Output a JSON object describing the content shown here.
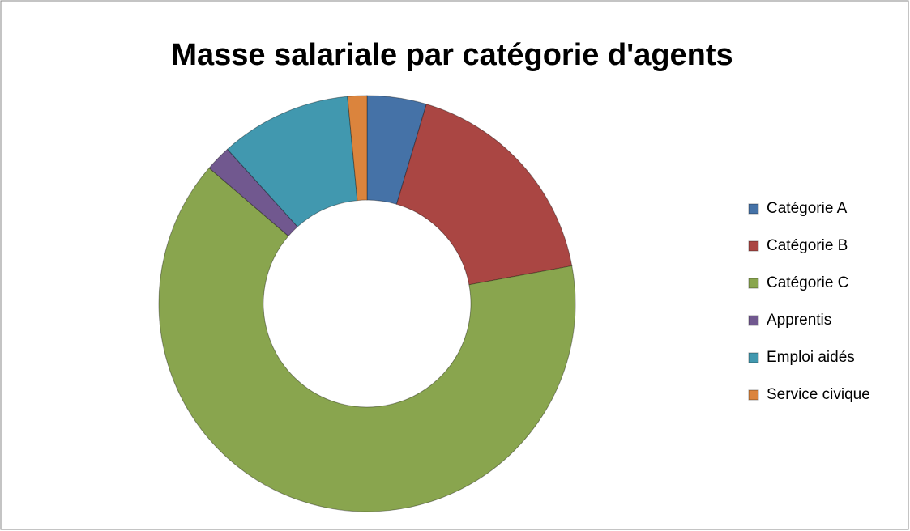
{
  "chart_data": {
    "type": "doughnut",
    "title": "Masse salariale par catégorie d'agents",
    "categories": [
      "Catégorie A",
      "Catégorie B",
      "Catégorie C",
      "Apprentis",
      "Emploi aidés",
      "Service civique"
    ],
    "values": [
      4.6,
      17.5,
      64.2,
      2.0,
      10.2,
      1.5
    ],
    "colors": [
      "#4572a7",
      "#aa4643",
      "#89a54e",
      "#71588f",
      "#4198af",
      "#db843d"
    ],
    "legend": "right"
  }
}
